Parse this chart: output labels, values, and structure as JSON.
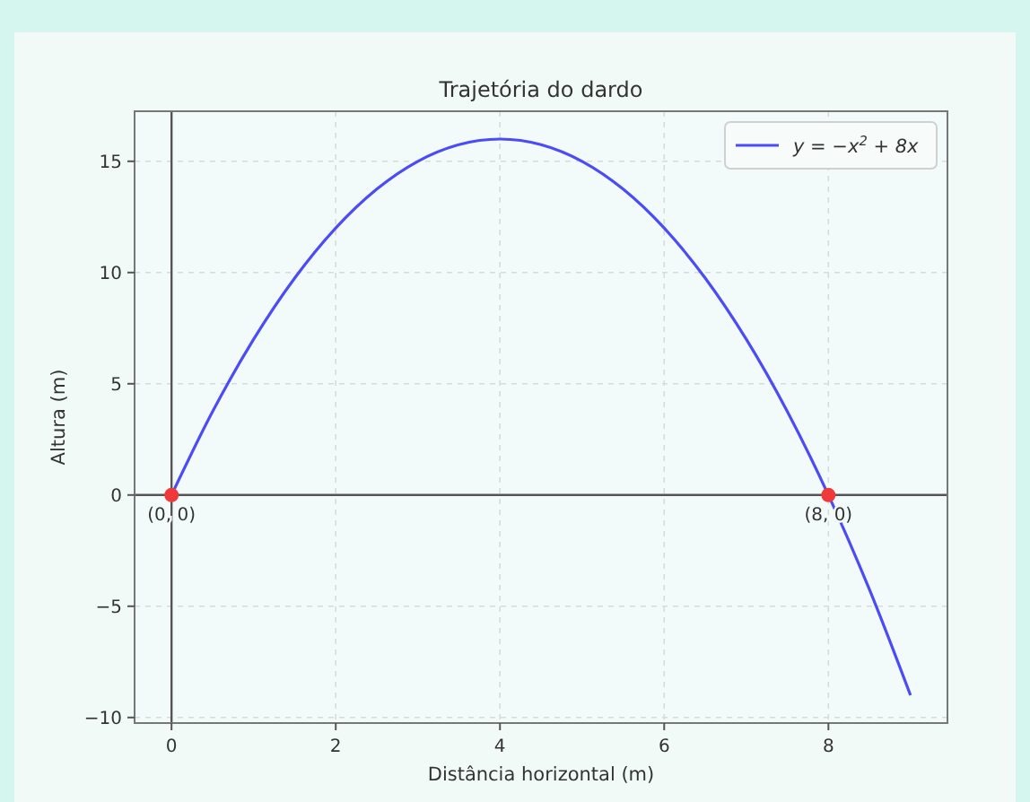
{
  "chart_data": {
    "type": "line",
    "title": "Trajetória do dardo",
    "xlabel": "Distância horizontal (m)",
    "ylabel": "Altura (m)",
    "xlim": [
      -0.45,
      9.45
    ],
    "ylim": [
      -10.25,
      17.25
    ],
    "xticks": [
      0,
      2,
      4,
      6,
      8
    ],
    "yticks": [
      -10,
      -5,
      0,
      5,
      10,
      15
    ],
    "grid": true,
    "legend": "top right",
    "series": [
      {
        "name": "y = −x$^{2}$ + 8x",
        "color": "#4b4bf7",
        "marker": "none",
        "line_style": "solid",
        "x": [
          0,
          0.5,
          1,
          1.5,
          2,
          2.5,
          3,
          3.5,
          4,
          4.5,
          5,
          5.5,
          6,
          6.5,
          7,
          7.5,
          8,
          8.5,
          9
        ],
        "values": [
          0,
          3.75,
          7,
          9.75,
          12,
          13.75,
          15,
          15.75,
          16,
          15.75,
          15,
          13.75,
          12,
          9.75,
          7,
          3.75,
          0,
          -4.25,
          -9
        ]
      },
      {
        "color": "#f03a3a",
        "type": "scatter",
        "marker": "circle",
        "x": [
          0,
          8
        ],
        "values": [
          0,
          0
        ]
      }
    ],
    "annotations": [
      {
        "text": "(0, 0)",
        "x": 0,
        "y": 0
      },
      {
        "text": "(8, 0)",
        "x": 8,
        "y": 0
      }
    ]
  }
}
